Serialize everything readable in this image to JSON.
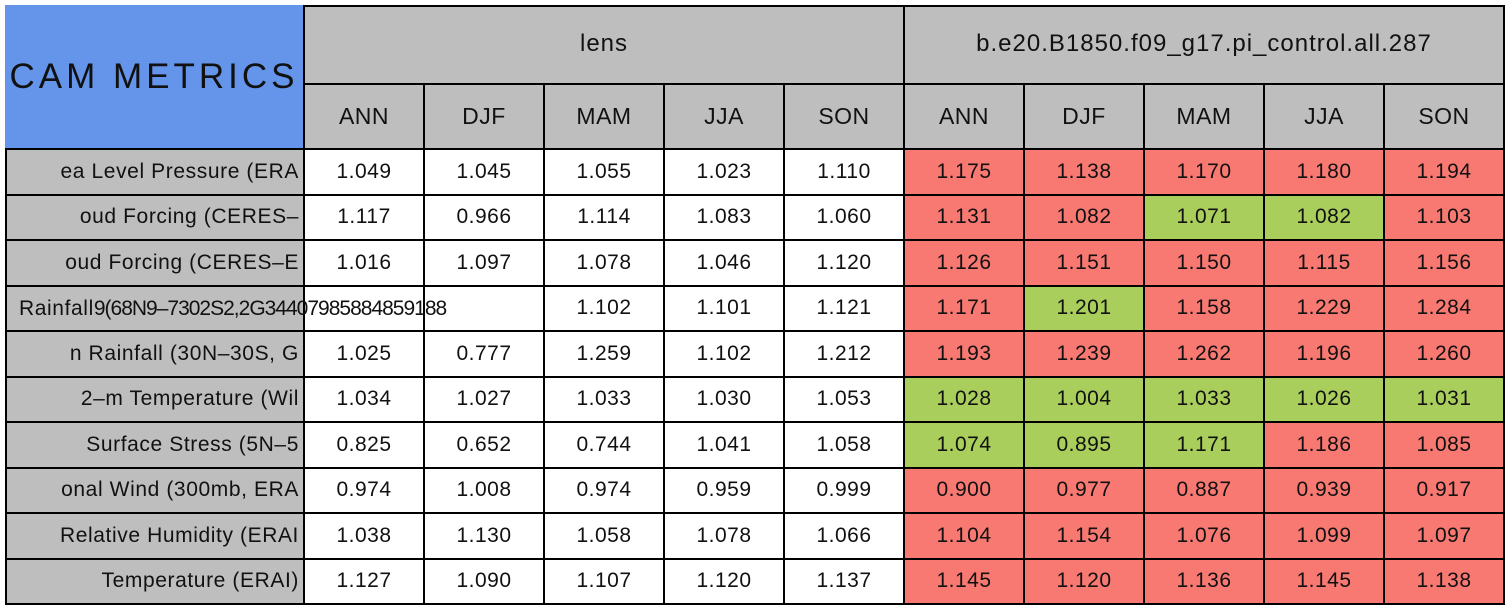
{
  "colors": {
    "blue": "#6495EA",
    "gray": "#BEBEBE",
    "red": "#F87972",
    "green": "#A9CE5B",
    "white": "#FFFFFF",
    "border": "#000000"
  },
  "chart_data": {
    "type": "table",
    "title": "CAM METRICS",
    "column_groups": [
      {
        "label": "lens"
      },
      {
        "label": "b.e20.B1850.f09_g17.pi_control.all.287"
      }
    ],
    "seasons": [
      "ANN",
      "DJF",
      "MAM",
      "JJA",
      "SON"
    ],
    "legend_note_red_means": "red",
    "legend_note_green_means": "green",
    "rows": [
      {
        "label": "ea Level Pressure (ERA",
        "lens": [
          "1.049",
          "1.045",
          "1.055",
          "1.023",
          "1.110"
        ],
        "control": [
          "1.175",
          "1.138",
          "1.170",
          "1.180",
          "1.194"
        ],
        "control_colors": [
          "red",
          "red",
          "red",
          "red",
          "red"
        ]
      },
      {
        "label": "oud Forcing (CERES–",
        "lens": [
          "1.117",
          "0.966",
          "1.114",
          "1.083",
          "1.060"
        ],
        "control": [
          "1.131",
          "1.082",
          "1.071",
          "1.082",
          "1.103"
        ],
        "control_colors": [
          "red",
          "red",
          "green",
          "green",
          "red"
        ]
      },
      {
        "label": "oud Forcing (CERES–E",
        "lens": [
          "1.016",
          "1.097",
          "1.078",
          "1.046",
          "1.120"
        ],
        "control": [
          "1.126",
          "1.151",
          "1.150",
          "1.115",
          "1.156"
        ],
        "control_colors": [
          "red",
          "red",
          "red",
          "red",
          "red"
        ]
      },
      {
        "label": "",
        "label_overflow_a": "Rainfall ",
        "label_overflow_b": "9(68N9–7302S2,2G34407985884859188",
        "lens": [
          "",
          "",
          "1.102",
          "1.101",
          "1.121"
        ],
        "control": [
          "1.171",
          "1.201",
          "1.158",
          "1.229",
          "1.284"
        ],
        "control_colors": [
          "red",
          "green",
          "red",
          "red",
          "red"
        ]
      },
      {
        "label": "n Rainfall (30N–30S, G",
        "lens": [
          "1.025",
          "0.777",
          "1.259",
          "1.102",
          "1.212"
        ],
        "control": [
          "1.193",
          "1.239",
          "1.262",
          "1.196",
          "1.260"
        ],
        "control_colors": [
          "red",
          "red",
          "red",
          "red",
          "red"
        ]
      },
      {
        "label": "2–m Temperature (Wil",
        "lens": [
          "1.034",
          "1.027",
          "1.033",
          "1.030",
          "1.053"
        ],
        "control": [
          "1.028",
          "1.004",
          "1.033",
          "1.026",
          "1.031"
        ],
        "control_colors": [
          "green",
          "green",
          "green",
          "green",
          "green"
        ]
      },
      {
        "label": "Surface Stress (5N–5",
        "lens": [
          "0.825",
          "0.652",
          "0.744",
          "1.041",
          "1.058"
        ],
        "control": [
          "1.074",
          "0.895",
          "1.171",
          "1.186",
          "1.085"
        ],
        "control_colors": [
          "green",
          "green",
          "green",
          "red",
          "red"
        ]
      },
      {
        "label": "onal Wind (300mb, ERA",
        "lens": [
          "0.974",
          "1.008",
          "0.974",
          "0.959",
          "0.999"
        ],
        "control": [
          "0.900",
          "0.977",
          "0.887",
          "0.939",
          "0.917"
        ],
        "control_colors": [
          "red",
          "red",
          "red",
          "red",
          "red"
        ]
      },
      {
        "label": "Relative Humidity (ERAI",
        "lens": [
          "1.038",
          "1.130",
          "1.058",
          "1.078",
          "1.066"
        ],
        "control": [
          "1.104",
          "1.154",
          "1.076",
          "1.099",
          "1.097"
        ],
        "control_colors": [
          "red",
          "red",
          "red",
          "red",
          "red"
        ]
      },
      {
        "label": "Temperature (ERAI)",
        "lens": [
          "1.127",
          "1.090",
          "1.107",
          "1.120",
          "1.137"
        ],
        "control": [
          "1.145",
          "1.120",
          "1.136",
          "1.145",
          "1.138"
        ],
        "control_colors": [
          "red",
          "red",
          "red",
          "red",
          "red"
        ]
      }
    ]
  }
}
